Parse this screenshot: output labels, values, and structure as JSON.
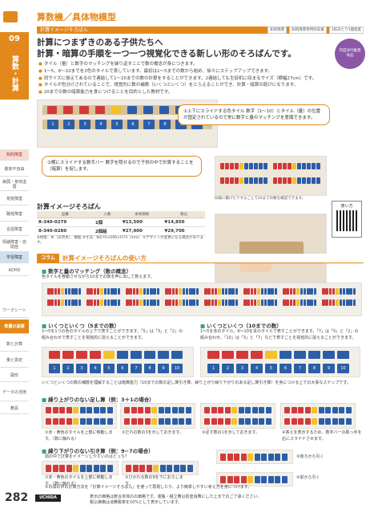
{
  "header": {
    "title": "算数機／具体物模型",
    "section_label": "計算イメージそろばん",
    "tags": [
      "知的障害",
      "知的障害等特別支援",
      "1校あたり1個程度"
    ]
  },
  "sidebar": {
    "number": "09",
    "category": "算数・計算",
    "nav": [
      "知的障害",
      "肢体不自由",
      "病弱・身体虚弱",
      "視覚障害",
      "聴覚障害",
      "言語障害",
      "情緒障害・自閉症",
      "学習障害",
      "ADHD",
      "ワークシート",
      "数量の基礎",
      "数と計算",
      "量と測定",
      "図形",
      "データの活用",
      "教具"
    ]
  },
  "headline": {
    "line1": "計算につまずきのある子供たちへ",
    "line2": "計算・暗算の手順を一つ一つ視覚化できる新しい形のそろばんです。"
  },
  "badge": "内田洋行推奨商品",
  "bullets": [
    "タイル（量）と数字のマッチングを繰り返すことで数の概念が身につきます。",
    "1〜5、6〜10までを2色のタイルで表しています。最初は1〜5までの数から始め、徐々にステップアップできます。",
    "同サイズに揃えてあるので連結して1〜20までの数の計算をすることができます。2連結しても生徒机に収まるサイズ（横幅27cm）です。",
    "タイルが色分けされていることで、視覚的に数の補数（いくつといくつ）をとらえることができ、計算・暗算の助けになります。",
    "20までの数の暗算能力を身につけることを目的とした教材です。"
  ],
  "number_tiles": [
    "1",
    "2",
    "3",
    "4",
    "5",
    "6",
    "7",
    "8",
    "9",
    "10"
  ],
  "callouts": {
    "upper": "①上下にスライドする色タイル 数字（1〜10）とタイル（量）の位置が固定されているので常に数字と量のマッチングを意識できます。",
    "lower": "②横にスライドする数字バー 数字を隠せるので子供の中で計算することを（暗算）を促します。"
  },
  "photo_captions": {
    "connected": "同様に繋げたりすることで20までの数を確認できます。",
    "usage": "机に置いてそろばんを操作する"
  },
  "qr_label": "使い方",
  "product_table": {
    "title": "計算イメージそろばん",
    "headers": [
      "品番",
      "入数",
      "本体価格",
      "税込"
    ],
    "rows": [
      [
        "8-340-0279",
        "1個",
        "¥13,500",
        "¥14,850"
      ],
      [
        "8-340-0280",
        "2個組",
        "¥27,000",
        "¥29,700"
      ]
    ],
    "notes": "※材質：木（天然木）、樹脂 ※寸法：W270×D90×H74（mm） ※デザインが変更になる場合があります。"
  },
  "column": {
    "tag": "コラム",
    "title": "計算イメージそろばんの使い方",
    "s1_title": "数字と量のマッチング（数の概念）",
    "s1_text": "色タイルを移動させながら10までの数を声に出して数えます。",
    "s2_title": "いくつといくつ（5までの数）",
    "s2_text": "1〜5を1つの色のタイルの上下で表すことができます。「5」は「3」と「2」の組み合わせで表すことを視覚的に捉えることができます。",
    "s3_title": "いくつといくつ（10までの数）",
    "s3_text": "1〜5を赤のタイル、6〜10を青のタイルで表すことができます。「7」は「5」と「2」の組み合わせ、「10」は「3」と「7」などで表すことを視覚的に捉えることができます。",
    "s2_note": "いくつといくつの数の補数を理解することは暗算能力（10までの数の足し算引き算、繰り上がり繰り下がりのある足し算引き算）を身につける上での大事なステップです。",
    "s4_title": "繰り上がりのない足し算（例：3＋1の場合）",
    "s4_steps": [
      "①赤・黄色のタイルを上部に移動します。（数に触れる）",
      "②だれの数の3を示しておきます。",
      "③足す数の1を示しておきます。",
      "④答えを表示するため、数字バーの取っ手を右にスライドさせます。"
    ],
    "s5_title": "繰り下がりのない引き算（例：9−7の場合）",
    "s5_text": "頭の中で計算をイメージしやすいのはどっち？",
    "s5_steps": [
      "①赤・黄色のタイルを上部に移動します。（数に触れる）",
      "②ひかれる数の9を下におろします。",
      "③後ろから引く",
      "④前から引く"
    ],
    "s5_note": "②の頭の中の計算方法を「計算イメージそろばん」を使って再現したり、より簡単しやすい考え方を身につけます。"
  },
  "footer": {
    "page": "282",
    "logo": "UCHIDA",
    "line1": "表示の価格は数合本体のの価格です。運搬・組立費は別途消費にした上までのご了承ください。",
    "line2": "税込価格は消費税率を10%として表示しています。"
  },
  "colors": {
    "accent": "#e3891b",
    "tile_red": "#d23a3a",
    "tile_yellow": "#f3c12a",
    "tile_blue": "#2c5ea8",
    "teal": "#3d9b88"
  }
}
